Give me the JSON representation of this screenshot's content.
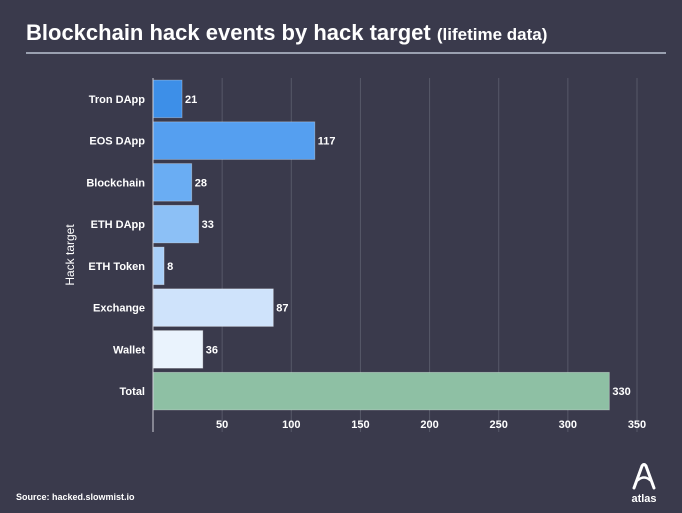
{
  "header": {
    "title": "Blockchain hack events by hack target",
    "subtitle": "(lifetime data)"
  },
  "footer": {
    "source": "Source: hacked.slowmist.io",
    "brand": "atlas",
    "brand_icon": "atlas-logo-icon"
  },
  "colors": {
    "background": "#3a3a4c",
    "bars": [
      "#3d8fe8",
      "#559ff0",
      "#6aadf3",
      "#8cc0f6",
      "#a9cff8",
      "#cfe3fb",
      "#eaf3fd",
      "#8ec0a4"
    ]
  },
  "chart_data": {
    "type": "bar",
    "orientation": "horizontal",
    "categories": [
      "Tron DApp",
      "EOS DApp",
      "Blockchain",
      "ETH DApp",
      "ETH Token",
      "Exchange",
      "Wallet",
      "Total"
    ],
    "values": [
      21,
      117,
      28,
      33,
      8,
      87,
      36,
      330
    ],
    "ylabel": "Hack target",
    "xlabel": "",
    "xlim": [
      0,
      350
    ],
    "xticks": [
      50,
      100,
      150,
      200,
      250,
      300,
      350
    ],
    "grid": true,
    "legend": "none"
  }
}
